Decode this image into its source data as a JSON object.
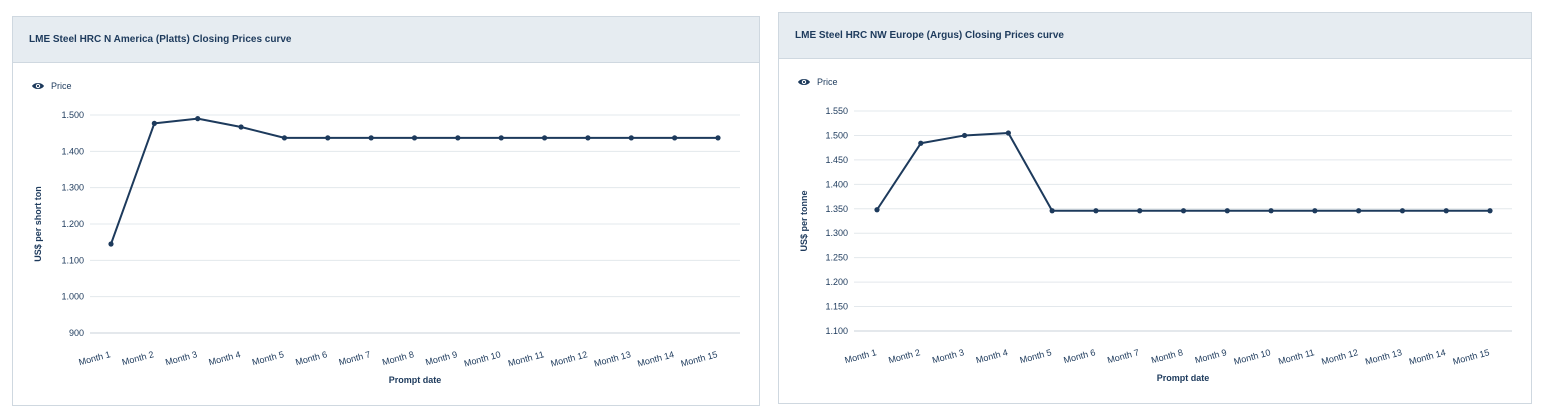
{
  "chart_data": [
    {
      "type": "line",
      "title": "LME Steel HRC N America (Platts) Closing Prices curve",
      "legend": {
        "label": "Price",
        "icon": "eye-icon",
        "placement": "top-left"
      },
      "xlabel": "Prompt date",
      "ylabel": "US$ per short ton",
      "ylim": [
        900,
        1500
      ],
      "yticks": [
        900,
        1000,
        1100,
        1200,
        1300,
        1400,
        1500
      ],
      "ytick_labels": [
        "900",
        "1.000",
        "1.100",
        "1.200",
        "1.300",
        "1.400",
        "1.500"
      ],
      "categories": [
        "Month 1",
        "Month 2",
        "Month 3",
        "Month 4",
        "Month 5",
        "Month 6",
        "Month 7",
        "Month 8",
        "Month 9",
        "Month 10",
        "Month 11",
        "Month 12",
        "Month 13",
        "Month 14",
        "Month 15"
      ],
      "series": [
        {
          "name": "Price",
          "color": "#1d3a5c",
          "values": [
            1145,
            1477,
            1490,
            1467,
            1437,
            1437,
            1437,
            1437,
            1437,
            1437,
            1437,
            1437,
            1437,
            1437,
            1437
          ]
        }
      ],
      "grid": true
    },
    {
      "type": "line",
      "title": "LME Steel HRC NW Europe (Argus) Closing Prices curve",
      "legend": {
        "label": "Price",
        "icon": "eye-icon",
        "placement": "top-left"
      },
      "xlabel": "Prompt date",
      "ylabel": "US$ per tonne",
      "ylim": [
        1100,
        1550
      ],
      "yticks": [
        1100,
        1150,
        1200,
        1250,
        1300,
        1350,
        1400,
        1450,
        1500,
        1550
      ],
      "ytick_labels": [
        "1.100",
        "1.150",
        "1.200",
        "1.250",
        "1.300",
        "1.350",
        "1.400",
        "1.450",
        "1.500",
        "1.550"
      ],
      "categories": [
        "Month 1",
        "Month 2",
        "Month 3",
        "Month 4",
        "Month 5",
        "Month 6",
        "Month 7",
        "Month 8",
        "Month 9",
        "Month 10",
        "Month 11",
        "Month 12",
        "Month 13",
        "Month 14",
        "Month 15"
      ],
      "series": [
        {
          "name": "Price",
          "color": "#1d3a5c",
          "values": [
            1348,
            1484,
            1500,
            1505,
            1346,
            1346,
            1346,
            1346,
            1346,
            1346,
            1346,
            1346,
            1346,
            1346,
            1346
          ]
        }
      ],
      "grid": true
    }
  ]
}
